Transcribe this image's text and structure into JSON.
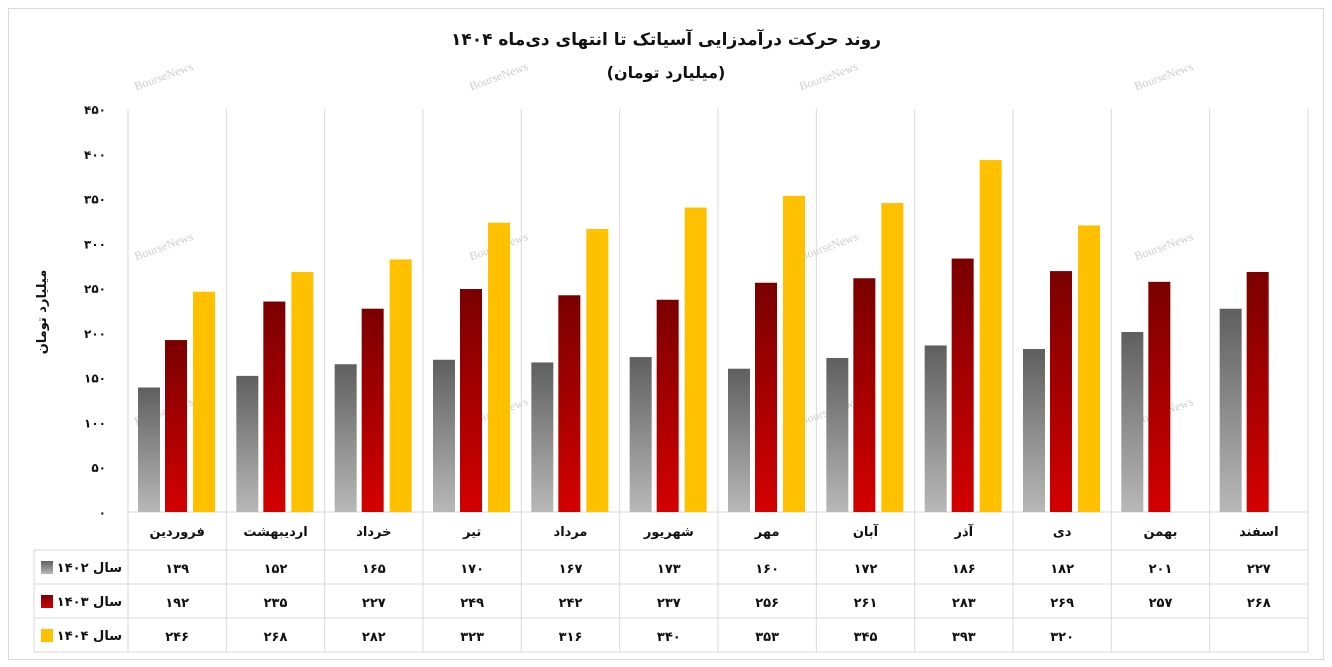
{
  "chart_data": {
    "type": "bar",
    "title": "روند حرکت درآمدزایی آسیاتک تا انتهای دی‌ماه ۱۴۰۴",
    "subtitle": "(میلیارد تومان)",
    "ylabel": "میلیارد تومان",
    "xlabel": "",
    "ylim": [
      0,
      450
    ],
    "yticks": [
      0,
      50,
      100,
      150,
      200,
      250,
      300,
      350,
      400,
      450
    ],
    "ytick_labels": [
      "۰",
      "۵۰",
      "۱۰۰",
      "۱۵۰",
      "۲۰۰",
      "۲۵۰",
      "۳۰۰",
      "۳۵۰",
      "۴۰۰",
      "۴۵۰"
    ],
    "grid": "vertical separators between categories",
    "legend": "data-table-left",
    "categories": [
      "فروردین",
      "اردیبهشت",
      "خرداد",
      "تیر",
      "مرداد",
      "شهریور",
      "مهر",
      "آبان",
      "آذر",
      "دی",
      "بهمن",
      "اسفند"
    ],
    "series": [
      {
        "name": "سال ۱۴۰۲",
        "color": "#8a8a8a",
        "values": [
          139,
          152,
          165,
          170,
          167,
          173,
          160,
          172,
          186,
          182,
          201,
          227
        ],
        "labels": [
          "۱۳۹",
          "۱۵۲",
          "۱۶۵",
          "۱۷۰",
          "۱۶۷",
          "۱۷۳",
          "۱۶۰",
          "۱۷۲",
          "۱۸۶",
          "۱۸۲",
          "۲۰۱",
          "۲۲۷"
        ]
      },
      {
        "name": "سال ۱۴۰۳",
        "color": "#a50000",
        "values": [
          192,
          235,
          227,
          249,
          242,
          237,
          256,
          261,
          283,
          269,
          257,
          268
        ],
        "labels": [
          "۱۹۲",
          "۲۳۵",
          "۲۲۷",
          "۲۴۹",
          "۲۴۲",
          "۲۳۷",
          "۲۵۶",
          "۲۶۱",
          "۲۸۳",
          "۲۶۹",
          "۲۵۷",
          "۲۶۸"
        ]
      },
      {
        "name": "سال ۱۴۰۴",
        "color": "#ffc000",
        "values": [
          246,
          268,
          282,
          323,
          316,
          340,
          353,
          345,
          393,
          320,
          null,
          null
        ],
        "labels": [
          "۲۴۶",
          "۲۶۸",
          "۲۸۲",
          "۳۲۳",
          "۳۱۶",
          "۳۴۰",
          "۳۵۳",
          "۳۴۵",
          "۳۹۳",
          "۳۲۰",
          "",
          ""
        ]
      }
    ],
    "watermark": "BourseNews"
  }
}
